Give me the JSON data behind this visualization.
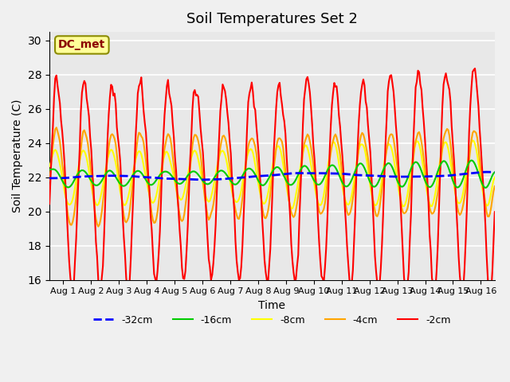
{
  "title": "Soil Temperatures Set 2",
  "xlabel": "Time",
  "ylabel": "Soil Temperature (C)",
  "ylim": [
    16,
    30.5
  ],
  "yticks": [
    16,
    18,
    20,
    22,
    24,
    26,
    28,
    30
  ],
  "annotation_text": "DC_met",
  "annotation_color": "#8B0000",
  "annotation_bg": "#FFFF99",
  "annotation_border": "#8B8B00",
  "bg_color": "#D8D8D8",
  "plot_bg": "#E8E8E8",
  "series_colors": {
    "-32cm": "#0000FF",
    "-16cm": "#00CC00",
    "-8cm": "#FFFF00",
    "-4cm": "#FFA500",
    "-2cm": "#FF0000"
  },
  "series_linestyles": {
    "-32cm": "--",
    "-16cm": "-",
    "-8cm": "-",
    "-4cm": "-",
    "-2cm": "-"
  },
  "series_linewidths": {
    "-32cm": 2.0,
    "-16cm": 1.5,
    "-8cm": 1.5,
    "-4cm": 1.5,
    "-2cm": 1.5
  },
  "x_tick_labels": [
    "Aug 1",
    "Aug 2",
    "Aug 3",
    "Aug 4",
    "Aug 5",
    "Aug 6",
    "Aug 7",
    "Aug 8",
    "Aug 9",
    "Aug 10",
    "Aug 11",
    "Aug 12",
    "Aug 13",
    "Aug 14",
    "Aug 15",
    "Aug 16"
  ],
  "n_days": 16,
  "pts_per_day": 24
}
